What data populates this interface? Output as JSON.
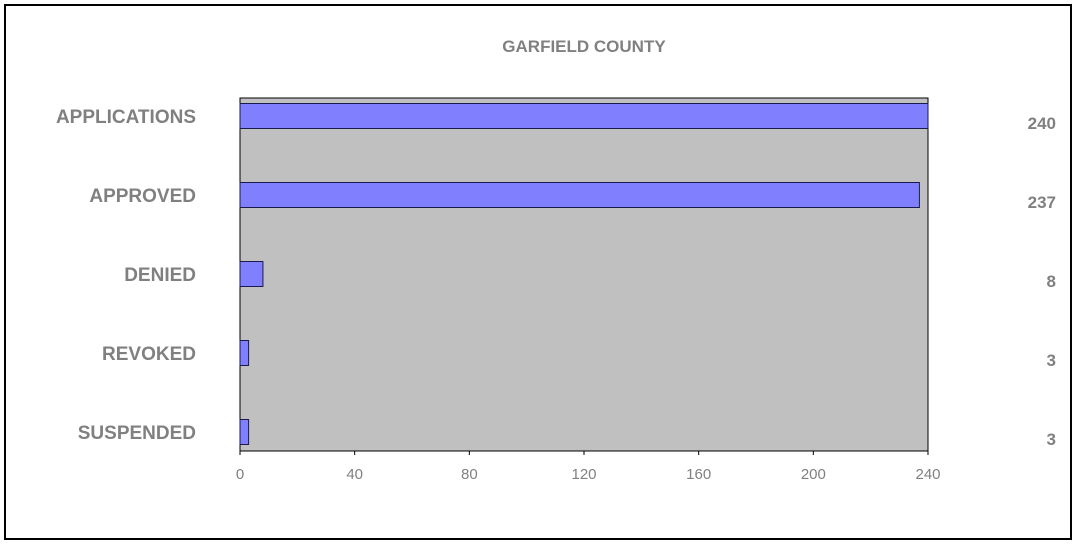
{
  "chart_data": {
    "type": "bar",
    "orientation": "horizontal",
    "title": "GARFIELD COUNTY",
    "categories": [
      "APPLICATIONS",
      "APPROVED",
      "DENIED",
      "REVOKED",
      "SUSPENDED"
    ],
    "values": [
      240,
      237,
      8,
      3,
      3
    ],
    "value_labels": [
      "240",
      "237",
      "8",
      "3",
      "3"
    ],
    "xlim": [
      0,
      240
    ],
    "xticks": [
      "0",
      "40",
      "80",
      "120",
      "160",
      "200",
      "240"
    ],
    "xtick_values": [
      0,
      40,
      80,
      120,
      160,
      200,
      240
    ],
    "grid": false,
    "legend": "none",
    "colors": {
      "bar_fill": "#8080ff",
      "bar_stroke": "#1a1a4d",
      "plot_background": "#c0c0c0",
      "text": "#808080"
    }
  }
}
